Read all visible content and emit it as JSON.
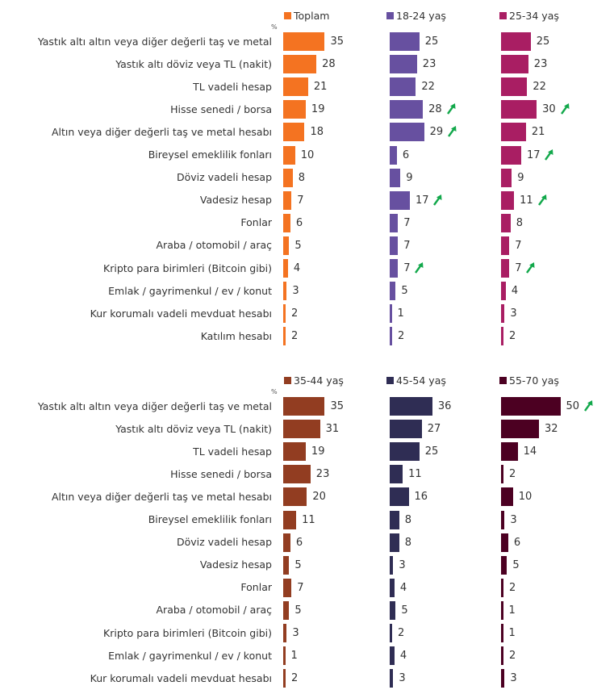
{
  "chart_data": [
    {
      "type": "bar",
      "orientation": "horizontal",
      "unit_label": "%",
      "categories": [
        "Yastık altı altın veya diğer değerli taş ve metal",
        "Yastık altı döviz veya TL (nakit)",
        "TL vadeli hesap",
        "Hisse senedi / borsa",
        "Altın veya diğer değerli taş ve metal hesabı",
        "Bireysel emeklilik fonları",
        "Döviz vadeli hesap",
        "Vadesiz hesap",
        "Fonlar",
        "Araba / otomobil / araç",
        "Kripto para birimleri (Bitcoin gibi)",
        "Emlak / gayrimenkul / ev / konut",
        "Kur korumalı vadeli mevduat hesabı",
        "Katılım hesabı"
      ],
      "series": [
        {
          "name": "Toplam",
          "color": "#F47321",
          "values": [
            35,
            28,
            21,
            19,
            18,
            10,
            8,
            7,
            6,
            5,
            4,
            3,
            2,
            2
          ],
          "up_arrows": []
        },
        {
          "name": "18-24 yaş",
          "color": "#6750A0",
          "values": [
            25,
            23,
            22,
            28,
            29,
            6,
            9,
            17,
            7,
            7,
            7,
            5,
            1,
            2
          ],
          "up_arrows": [
            3,
            4,
            7,
            10
          ]
        },
        {
          "name": "25-34 yaş",
          "color": "#A91E63",
          "values": [
            25,
            23,
            22,
            30,
            21,
            17,
            9,
            11,
            8,
            7,
            7,
            4,
            3,
            2
          ],
          "up_arrows": [
            3,
            5,
            7,
            10
          ]
        }
      ],
      "legend_position": "top"
    },
    {
      "type": "bar",
      "orientation": "horizontal",
      "unit_label": "%",
      "categories": [
        "Yastık altı altın veya diğer değerli taş ve metal",
        "Yastık altı döviz veya TL (nakit)",
        "TL vadeli hesap",
        "Hisse senedi / borsa",
        "Altın veya diğer değerli taş ve metal hesabı",
        "Bireysel emeklilik fonları",
        "Döviz vadeli hesap",
        "Vadesiz hesap",
        "Fonlar",
        "Araba / otomobil / araç",
        "Kripto para birimleri (Bitcoin gibi)",
        "Emlak / gayrimenkul / ev / konut",
        "Kur korumalı vadeli mevduat hesabı"
      ],
      "series": [
        {
          "name": "35-44 yaş",
          "color": "#923D21",
          "values": [
            35,
            31,
            19,
            23,
            20,
            11,
            6,
            5,
            7,
            5,
            3,
            1,
            2
          ],
          "up_arrows": []
        },
        {
          "name": "45-54 yaş",
          "color": "#2F2D54",
          "values": [
            36,
            27,
            25,
            11,
            16,
            8,
            8,
            3,
            4,
            5,
            2,
            4,
            3
          ],
          "up_arrows": []
        },
        {
          "name": "55-70 yaş",
          "color": "#4C0022",
          "values": [
            50,
            32,
            14,
            2,
            10,
            3,
            6,
            5,
            2,
            1,
            1,
            2,
            3
          ],
          "up_arrows": [
            0
          ]
        }
      ],
      "legend_position": "top"
    }
  ],
  "arrow_color": "#12A84B"
}
